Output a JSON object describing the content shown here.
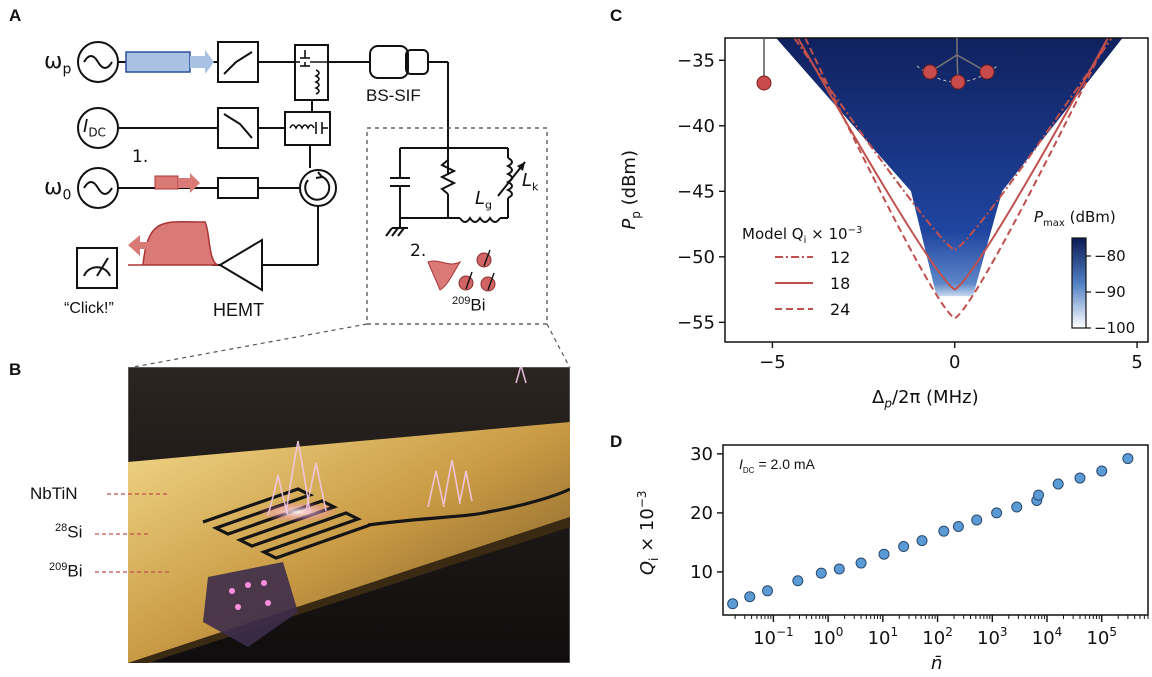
{
  "panels": {
    "a": "A",
    "b": "B",
    "c": "C",
    "d": "D"
  },
  "circuit": {
    "omega_p": "ω",
    "omega_p_sub": "p",
    "idc": "I",
    "idc_sub": "DC",
    "omega_0": "ω",
    "omega_0_sub": "0",
    "step1": "1.",
    "step2": "2.",
    "bs_sif": "BS-SIF",
    "click": "“Click!”",
    "hemt": "HEMT",
    "lg": "L",
    "lg_sub": "g",
    "lk": "L",
    "lk_sub": "k",
    "bi_sup": "209",
    "bi": "Bi"
  },
  "device_labels": [
    {
      "name": "NbTiN"
    },
    {
      "sup": "28",
      "name": "Si"
    },
    {
      "sup": "209",
      "name": "Bi"
    }
  ],
  "colors": {
    "blue_fill": "#2a4fa0",
    "red": "#c0504d",
    "dot_fill": "#5b9bd5",
    "dot_edge": "#2b4a6f"
  },
  "chart_data": [
    {
      "id": "C",
      "type": "heatmap",
      "xlabel": "Δ",
      "xlabel_sub": "p",
      "xlabel_tail": "/2π (MHz)",
      "ylabel": "P",
      "ylabel_sub": "p",
      "ylabel_tail": " (dBm)",
      "xlim": [
        -6.3,
        5.3
      ],
      "ylim": [
        -56.5,
        -33.3
      ],
      "xticks": [
        -5,
        0,
        5
      ],
      "xtick_labels": [
        "−5",
        "0",
        "5"
      ],
      "yticks": [
        -35,
        -40,
        -45,
        -50,
        -55
      ],
      "ytick_labels": [
        "−35",
        "−40",
        "−45",
        "−50",
        "−55"
      ],
      "colorbar": {
        "title": "P",
        "title_sub": "max",
        "title_tail": " (dBm)",
        "range": [
          -100,
          -75
        ],
        "ticks": [
          -80,
          -90,
          -100
        ],
        "tick_labels": [
          "−80",
          "−90",
          "−100"
        ]
      },
      "legend_title": "Model Q",
      "legend_title_sub": "i",
      "legend_title_tail": " × 10",
      "legend_title_exp": "−3",
      "legend_position": "center-left",
      "series": [
        {
          "name": "12",
          "style": "dashdot",
          "vertex": [
            0.0,
            -49.5
          ],
          "edges": [
            [
              -4.4,
              -33.3
            ],
            [
              4.3,
              -33.3
            ]
          ]
        },
        {
          "name": "18",
          "style": "solid",
          "vertex": [
            0.0,
            -52.5
          ],
          "edges": [
            [
              -4.3,
              -33.3
            ],
            [
              4.2,
              -33.3
            ]
          ]
        },
        {
          "name": "24",
          "style": "dashed",
          "vertex": [
            0.0,
            -54.7
          ],
          "edges": [
            [
              -4.1,
              -33.3
            ],
            [
              4.2,
              -33.3
            ]
          ]
        }
      ],
      "region_min_power": -53.0
    },
    {
      "id": "D",
      "type": "scatter",
      "xlabel": "n̄",
      "ylabel": "Q",
      "ylabel_sub": "i",
      "ylabel_tail": " × 10",
      "ylabel_exp": "−3",
      "xscale": "log",
      "xlim": [
        0.012,
        700000
      ],
      "ylim": [
        2.7,
        31.5
      ],
      "xticks": [
        0.1,
        1,
        10,
        100,
        1000,
        10000,
        100000
      ],
      "xtick_labels": [
        {
          "base": "10",
          "exp": "−1"
        },
        {
          "base": "10",
          "exp": "0"
        },
        {
          "base": "10",
          "exp": "1"
        },
        {
          "base": "10",
          "exp": "2"
        },
        {
          "base": "10",
          "exp": "3"
        },
        {
          "base": "10",
          "exp": "4"
        },
        {
          "base": "10",
          "exp": "5"
        }
      ],
      "yticks": [
        10,
        20,
        30
      ],
      "ytick_labels": [
        "10",
        "20",
        "30"
      ],
      "annotation": {
        "label": "I",
        "label_sub": "DC",
        "value": "= 2.0 mA"
      },
      "x": [
        0.018,
        0.037,
        0.078,
        0.28,
        0.75,
        1.6,
        4.0,
        10.5,
        24,
        52,
        130,
        240,
        520,
        1200,
        2800,
        6500,
        7000,
        16000,
        40000,
        100000,
        300000
      ],
      "y": [
        4.6,
        5.8,
        6.8,
        8.5,
        9.8,
        10.5,
        11.5,
        13.0,
        14.3,
        15.3,
        16.9,
        17.7,
        18.8,
        20.0,
        21.0,
        22.1,
        23.0,
        24.9,
        25.9,
        27.1,
        29.2
      ]
    }
  ]
}
